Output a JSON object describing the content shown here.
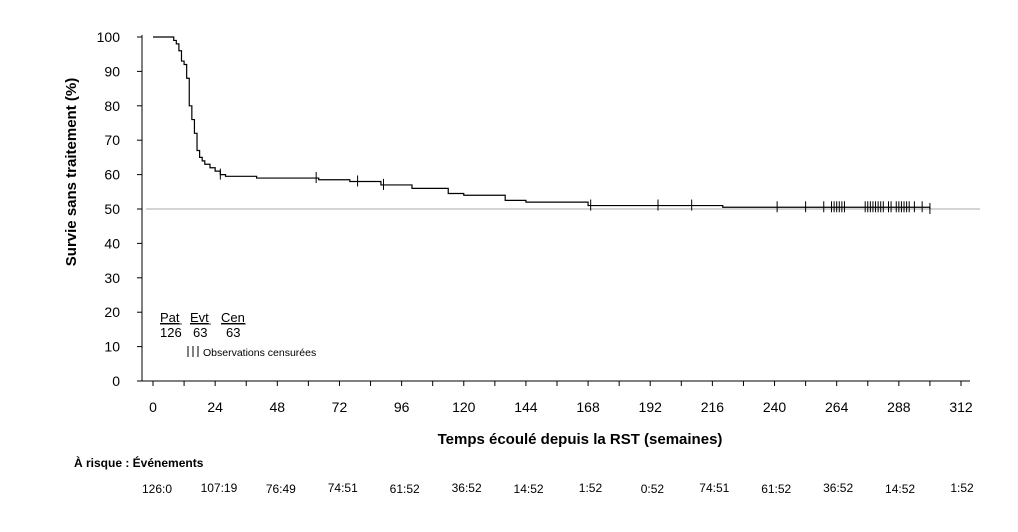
{
  "chart_data": {
    "type": "line",
    "subtype": "kaplan-meier",
    "title": "",
    "xlabel": "Temps écoulé depuis la RST (semaines)",
    "ylabel": "Survie sans traitement (%)",
    "xlim": [
      0,
      312
    ],
    "ylim": [
      0,
      100
    ],
    "x_ticks": [
      0,
      24,
      48,
      72,
      96,
      120,
      144,
      168,
      192,
      216,
      240,
      264,
      288,
      312
    ],
    "x_tick_labels": [
      "0",
      "24",
      "48",
      "72",
      "96",
      "120",
      "144",
      "168",
      "192",
      "216",
      "240",
      "264",
      "288",
      "312"
    ],
    "y_ticks": [
      0,
      10,
      20,
      30,
      40,
      50,
      60,
      70,
      80,
      90,
      100
    ],
    "y_tick_labels": [
      "0",
      "10",
      "20",
      "30",
      "40",
      "50",
      "60",
      "70",
      "80",
      "90",
      "100"
    ],
    "grid": false,
    "reference_line_y": 50,
    "series": [
      {
        "x": [
          0,
          7,
          8,
          9,
          10,
          11,
          12,
          13,
          14,
          15,
          16,
          17,
          18,
          19,
          20,
          21,
          22,
          24,
          26,
          28,
          40,
          64,
          76,
          88,
          100,
          114,
          120,
          136,
          144,
          168,
          220,
          300
        ],
        "y": [
          100,
          100,
          99,
          98,
          96,
          93,
          92,
          88,
          80,
          76,
          72,
          67,
          65,
          64,
          63,
          63,
          62,
          61,
          60,
          59.5,
          59,
          58.5,
          58,
          57,
          56,
          54.5,
          54,
          52.5,
          52,
          51,
          50.5,
          50
        ]
      }
    ],
    "censor_marks_x": [
      26,
      63,
      79,
      89,
      169,
      195,
      208,
      241,
      252,
      259,
      262,
      263,
      264,
      265,
      266,
      267,
      275,
      276,
      277,
      278,
      279,
      280,
      281,
      282,
      284,
      285,
      287,
      288,
      289,
      290,
      291,
      292,
      294,
      297,
      300
    ],
    "legend": {
      "headers": [
        "Pat",
        "Evt",
        "Cen"
      ],
      "values": [
        "126",
        "63",
        "63"
      ],
      "censor_label": "Observations censurées"
    },
    "risk_table": {
      "title": "À risque : Événements",
      "values": [
        "126:0",
        "107:19",
        "76:49",
        "74:51",
        "61:52",
        "36:52",
        "14:52",
        "1:52",
        "0:52",
        "74:51",
        "61:52",
        "36:52",
        "14:52",
        "1:52"
      ]
    }
  }
}
